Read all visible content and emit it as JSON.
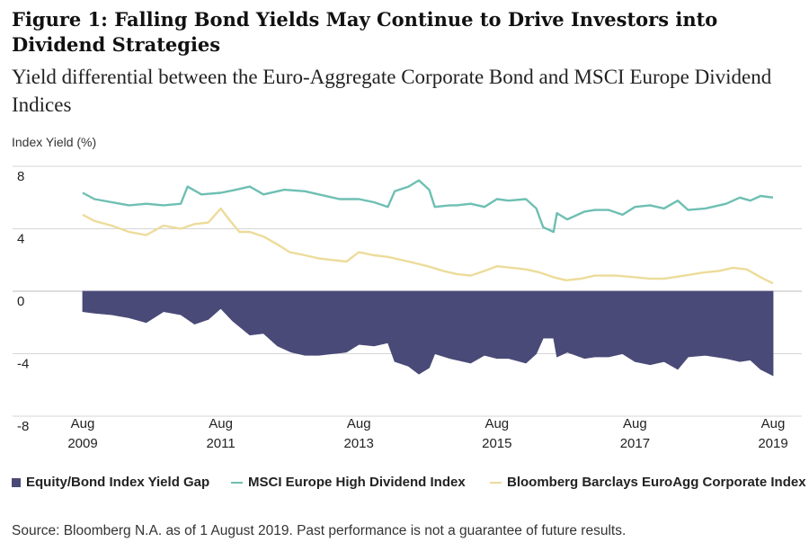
{
  "title": "Figure 1: Falling Bond Yields May Continue to Drive Investors into Dividend Strategies",
  "subtitle": "Yield differential between the Euro-Aggregate Corporate Bond and MSCI Europe Dividend Indices",
  "source": "Source: Bloomberg N.A. as of 1 August 2019. Past performance is not a guarantee of future results.",
  "legend": [
    {
      "label": "Equity/Bond Index Yield Gap",
      "color": "#4a4a78",
      "shape": "box"
    },
    {
      "label": "MSCI Europe High Dividend Index",
      "color": "#6ebfb3",
      "shape": "line"
    },
    {
      "label": "Bloomberg Barclays EuroAgg Corporate Index",
      "color": "#ecdc9a",
      "shape": "line"
    }
  ],
  "chart_data": {
    "type": "line",
    "ylabel": "Index Yield (%)",
    "xlabel": "",
    "ylim": [
      -8,
      8
    ],
    "yticks": [
      "8",
      "4",
      "0",
      "-4",
      "-8"
    ],
    "xlim": [
      2009.58,
      2019.58
    ],
    "xticks": [
      {
        "x": 2009.58,
        "line1": "Aug",
        "line2": "2009"
      },
      {
        "x": 2011.58,
        "line1": "Aug",
        "line2": "2011"
      },
      {
        "x": 2013.58,
        "line1": "Aug",
        "line2": "2013"
      },
      {
        "x": 2015.58,
        "line1": "Aug",
        "line2": "2015"
      },
      {
        "x": 2017.58,
        "line1": "Aug",
        "line2": "2017"
      },
      {
        "x": 2019.58,
        "line1": "Aug",
        "line2": "2019"
      }
    ],
    "grid": "horizontal",
    "legend_position": "bottom",
    "series": [
      {
        "name": "MSCI Europe High Dividend Index",
        "type": "line",
        "color": "#6ebfb3",
        "points": [
          [
            2009.58,
            6.3
          ],
          [
            2009.75,
            5.9
          ],
          [
            2010.0,
            5.7
          ],
          [
            2010.25,
            5.5
          ],
          [
            2010.5,
            5.6
          ],
          [
            2010.75,
            5.5
          ],
          [
            2011.0,
            5.6
          ],
          [
            2011.1,
            6.7
          ],
          [
            2011.3,
            6.2
          ],
          [
            2011.58,
            6.3
          ],
          [
            2011.8,
            6.5
          ],
          [
            2012.0,
            6.7
          ],
          [
            2012.2,
            6.2
          ],
          [
            2012.5,
            6.5
          ],
          [
            2012.8,
            6.4
          ],
          [
            2013.0,
            6.2
          ],
          [
            2013.3,
            5.9
          ],
          [
            2013.58,
            5.9
          ],
          [
            2013.8,
            5.7
          ],
          [
            2014.0,
            5.4
          ],
          [
            2014.1,
            6.4
          ],
          [
            2014.3,
            6.7
          ],
          [
            2014.45,
            7.1
          ],
          [
            2014.6,
            6.5
          ],
          [
            2014.68,
            5.4
          ],
          [
            2014.9,
            5.5
          ],
          [
            2015.0,
            5.5
          ],
          [
            2015.2,
            5.6
          ],
          [
            2015.4,
            5.4
          ],
          [
            2015.58,
            5.9
          ],
          [
            2015.75,
            5.8
          ],
          [
            2016.0,
            5.9
          ],
          [
            2016.15,
            5.3
          ],
          [
            2016.25,
            4.1
          ],
          [
            2016.4,
            3.8
          ],
          [
            2016.45,
            5.0
          ],
          [
            2016.6,
            4.6
          ],
          [
            2016.85,
            5.1
          ],
          [
            2017.0,
            5.2
          ],
          [
            2017.2,
            5.2
          ],
          [
            2017.4,
            4.9
          ],
          [
            2017.58,
            5.4
          ],
          [
            2017.8,
            5.5
          ],
          [
            2018.0,
            5.3
          ],
          [
            2018.2,
            5.8
          ],
          [
            2018.35,
            5.2
          ],
          [
            2018.6,
            5.3
          ],
          [
            2018.9,
            5.6
          ],
          [
            2019.1,
            6.0
          ],
          [
            2019.25,
            5.8
          ],
          [
            2019.4,
            6.1
          ],
          [
            2019.58,
            6.0
          ]
        ]
      },
      {
        "name": "Bloomberg Barclays EuroAgg Corporate Index",
        "type": "line",
        "color": "#ecdc9a",
        "points": [
          [
            2009.58,
            4.9
          ],
          [
            2009.75,
            4.5
          ],
          [
            2010.0,
            4.2
          ],
          [
            2010.25,
            3.8
          ],
          [
            2010.5,
            3.6
          ],
          [
            2010.75,
            4.2
          ],
          [
            2011.0,
            4.0
          ],
          [
            2011.2,
            4.3
          ],
          [
            2011.4,
            4.4
          ],
          [
            2011.58,
            5.3
          ],
          [
            2011.7,
            4.6
          ],
          [
            2011.85,
            3.8
          ],
          [
            2012.0,
            3.8
          ],
          [
            2012.2,
            3.5
          ],
          [
            2012.4,
            3.0
          ],
          [
            2012.58,
            2.5
          ],
          [
            2012.8,
            2.3
          ],
          [
            2013.0,
            2.1
          ],
          [
            2013.2,
            2.0
          ],
          [
            2013.4,
            1.9
          ],
          [
            2013.58,
            2.5
          ],
          [
            2013.8,
            2.3
          ],
          [
            2014.0,
            2.2
          ],
          [
            2014.3,
            1.9
          ],
          [
            2014.58,
            1.6
          ],
          [
            2014.8,
            1.3
          ],
          [
            2015.0,
            1.1
          ],
          [
            2015.2,
            1.0
          ],
          [
            2015.4,
            1.3
          ],
          [
            2015.58,
            1.6
          ],
          [
            2015.8,
            1.5
          ],
          [
            2016.0,
            1.4
          ],
          [
            2016.2,
            1.2
          ],
          [
            2016.4,
            0.9
          ],
          [
            2016.58,
            0.7
          ],
          [
            2016.8,
            0.8
          ],
          [
            2017.0,
            1.0
          ],
          [
            2017.3,
            1.0
          ],
          [
            2017.58,
            0.9
          ],
          [
            2017.8,
            0.8
          ],
          [
            2018.0,
            0.8
          ],
          [
            2018.3,
            1.0
          ],
          [
            2018.58,
            1.2
          ],
          [
            2018.8,
            1.3
          ],
          [
            2019.0,
            1.5
          ],
          [
            2019.2,
            1.4
          ],
          [
            2019.4,
            0.9
          ],
          [
            2019.58,
            0.5
          ]
        ]
      },
      {
        "name": "Equity/Bond Index Yield Gap",
        "type": "area",
        "color": "#4a4a78",
        "points": [
          [
            2009.58,
            -1.3
          ],
          [
            2009.75,
            -1.4
          ],
          [
            2010.0,
            -1.5
          ],
          [
            2010.25,
            -1.7
          ],
          [
            2010.5,
            -2.0
          ],
          [
            2010.75,
            -1.3
          ],
          [
            2011.0,
            -1.5
          ],
          [
            2011.2,
            -2.1
          ],
          [
            2011.4,
            -1.8
          ],
          [
            2011.58,
            -1.1
          ],
          [
            2011.75,
            -1.9
          ],
          [
            2012.0,
            -2.8
          ],
          [
            2012.2,
            -2.7
          ],
          [
            2012.4,
            -3.5
          ],
          [
            2012.6,
            -3.9
          ],
          [
            2012.8,
            -4.1
          ],
          [
            2013.0,
            -4.1
          ],
          [
            2013.2,
            -4.0
          ],
          [
            2013.4,
            -3.9
          ],
          [
            2013.58,
            -3.4
          ],
          [
            2013.8,
            -3.5
          ],
          [
            2014.0,
            -3.3
          ],
          [
            2014.1,
            -4.5
          ],
          [
            2014.3,
            -4.8
          ],
          [
            2014.45,
            -5.3
          ],
          [
            2014.6,
            -4.9
          ],
          [
            2014.68,
            -4.0
          ],
          [
            2014.9,
            -4.3
          ],
          [
            2015.0,
            -4.4
          ],
          [
            2015.2,
            -4.6
          ],
          [
            2015.4,
            -4.1
          ],
          [
            2015.58,
            -4.3
          ],
          [
            2015.75,
            -4.3
          ],
          [
            2016.0,
            -4.6
          ],
          [
            2016.15,
            -4.0
          ],
          [
            2016.25,
            -3.0
          ],
          [
            2016.4,
            -3.0
          ],
          [
            2016.45,
            -4.2
          ],
          [
            2016.6,
            -3.9
          ],
          [
            2016.85,
            -4.3
          ],
          [
            2017.0,
            -4.2
          ],
          [
            2017.2,
            -4.2
          ],
          [
            2017.4,
            -4.0
          ],
          [
            2017.58,
            -4.5
          ],
          [
            2017.8,
            -4.7
          ],
          [
            2018.0,
            -4.5
          ],
          [
            2018.2,
            -5.0
          ],
          [
            2018.35,
            -4.2
          ],
          [
            2018.6,
            -4.1
          ],
          [
            2018.9,
            -4.3
          ],
          [
            2019.1,
            -4.5
          ],
          [
            2019.25,
            -4.4
          ],
          [
            2019.4,
            -5.0
          ],
          [
            2019.58,
            -5.4
          ]
        ]
      }
    ]
  }
}
